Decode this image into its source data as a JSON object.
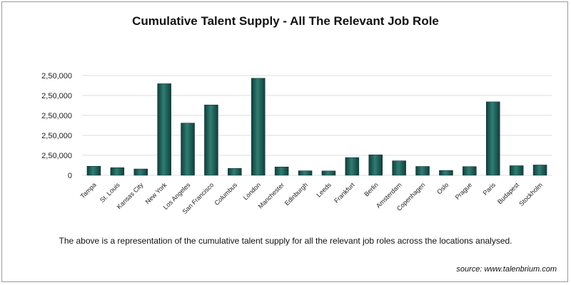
{
  "chart_data": {
    "type": "bar",
    "title": "Cumulative Talent Supply - All The Relevant Job Role",
    "xlabel": "",
    "ylabel": "",
    "categories": [
      "Tampa",
      "St. Louis",
      "Kansas City",
      "New York",
      "Los Angeles",
      "San Francisco",
      "Columbus",
      "London",
      "Manchester",
      "Edinburgh",
      "Leeds",
      "Frankfurt",
      "Berlin",
      "Amsterdam",
      "Copenhagen",
      "Oslo",
      "Prague",
      "Paris",
      "Budapest",
      "Stockholm"
    ],
    "values": [
      50000,
      42000,
      35000,
      505000,
      288000,
      388000,
      38000,
      535000,
      46000,
      25000,
      24000,
      98000,
      113000,
      80000,
      49000,
      27000,
      48000,
      405000,
      53000,
      57000
    ],
    "y_tick_labels": [
      "0",
      "2,50,000",
      "2,50,000",
      "2,50,000",
      "2,50,000",
      "2,50,000"
    ],
    "ylim": [
      0,
      550000
    ],
    "grid": true,
    "legend": "none",
    "bar_color": "#1a5d56",
    "bar_highlight": "#3f8a82",
    "grid_color": "#dcdcdc"
  },
  "caption": "The above is a representation of the cumulative talent supply for all the relevant job roles across the locations analysed.",
  "source": "source: www.talenbrium.com"
}
